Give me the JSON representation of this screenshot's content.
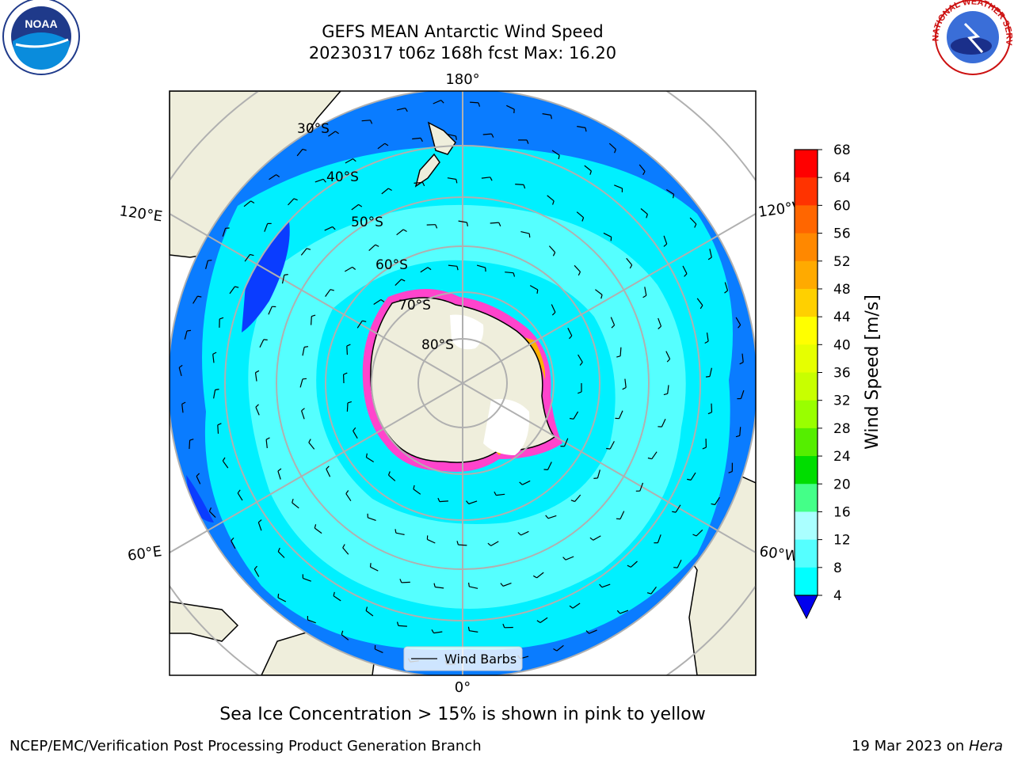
{
  "title": {
    "line1": "GEFS MEAN Antarctic Wind Speed",
    "line2": "20230317 t06z 168h fcst   Max: 16.20"
  },
  "map": {
    "projection": "south polar stereographic",
    "longitude_labels": {
      "top": "180°",
      "bottom": "0°",
      "upper_left": "120°E",
      "upper_right": "120°W",
      "lower_left": "60°E",
      "lower_right": "60°W"
    },
    "latitude_labels": [
      "30°S",
      "40°S",
      "50°S",
      "60°S",
      "70°S",
      "80°S"
    ],
    "legend_label": "Wind Barbs",
    "colors": {
      "ocean_slow": "#0a7cff",
      "ocean_mid": "#00f0ff",
      "ocean_fast": "#55ffff",
      "land": "#efeedc",
      "sea_ice": "#ff44cc",
      "sea_ice_high": "#ffb000",
      "grid": "#b0b0b0"
    }
  },
  "colorbar": {
    "label": "Wind Speed [m/s]",
    "ticks": [
      "68",
      "64",
      "60",
      "56",
      "52",
      "48",
      "44",
      "40",
      "36",
      "32",
      "28",
      "24",
      "20",
      "16",
      "12",
      "8",
      "4"
    ],
    "colors": [
      "#ff0000",
      "#ff3300",
      "#ff6600",
      "#ff8800",
      "#ffaa00",
      "#ffd000",
      "#ffff00",
      "#e6ff00",
      "#c8ff00",
      "#99ff00",
      "#55ee00",
      "#00dd00",
      "#44ff88",
      "#aaffff",
      "#55ffff",
      "#00ffff",
      "#0a7cff"
    ],
    "under_color": "#0000ee"
  },
  "caption": "Sea Ice Concentration > 15% is shown in pink to yellow",
  "credit": {
    "left": "NCEP/EMC/Verification Post Processing Product Generation Branch",
    "right_prefix": "19 Mar 2023 on ",
    "right_host": "Hera"
  },
  "logos": {
    "noaa": "NOAA",
    "nws_text": "NATIONAL WEATHER SERVICE"
  }
}
